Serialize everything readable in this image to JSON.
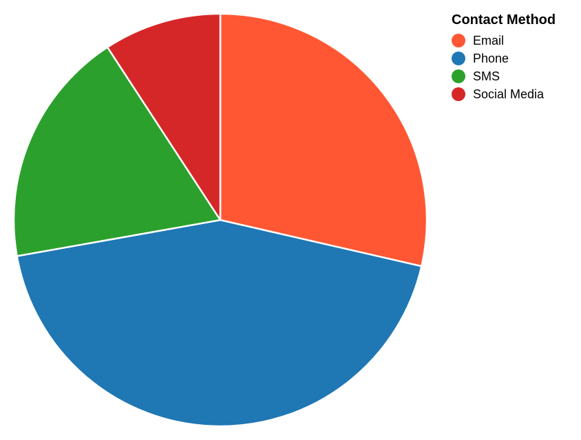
{
  "chart_data": {
    "type": "pie",
    "title": "",
    "legend": {
      "title": "Contact Method",
      "placement": "top-right"
    },
    "categories": [
      "Email",
      "Phone",
      "SMS",
      "Social Media"
    ],
    "values": [
      28.6,
      43.6,
      18.6,
      9.2
    ],
    "colors": [
      "#ff5733",
      "#1f77b4",
      "#2ca02c",
      "#d62728"
    ]
  }
}
